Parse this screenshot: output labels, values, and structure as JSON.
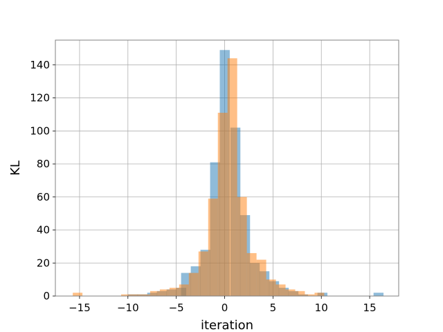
{
  "chart_data": {
    "type": "histogram",
    "title": "",
    "xlabel": "iteration",
    "ylabel": "KL",
    "xlim": [
      -17.5,
      18.0
    ],
    "ylim": [
      0,
      155
    ],
    "xticks": [
      -15,
      -10,
      -5,
      0,
      5,
      10,
      15
    ],
    "yticks": [
      0,
      20,
      40,
      60,
      80,
      100,
      120,
      140
    ],
    "grid": true,
    "legend": "none",
    "series": [
      {
        "color": "#1f77b4",
        "opacity": 0.5,
        "bin_width": 1.03,
        "bin_starts": [
          -10.0,
          -9.0,
          -8.0,
          -7.0,
          -6.0,
          -5.0,
          -4.5,
          -3.5,
          -2.5,
          -1.5,
          -0.5,
          0.6,
          1.6,
          2.6,
          3.6,
          4.6,
          5.6,
          6.6,
          7.6,
          9.6,
          15.4
        ],
        "counts": [
          1,
          1,
          2,
          3,
          4,
          5,
          14,
          18,
          28,
          81,
          149,
          102,
          49,
          20,
          15,
          9,
          5,
          3,
          1,
          2,
          2
        ]
      },
      {
        "color": "#ff7f0e",
        "opacity": 0.5,
        "bin_width": 1.0,
        "bin_starts": [
          -15.7,
          -10.7,
          -9.7,
          -8.7,
          -7.7,
          -6.7,
          -5.7,
          -4.7,
          -3.7,
          -2.7,
          -1.7,
          -0.7,
          0.3,
          1.3,
          2.3,
          3.3,
          4.3,
          5.3,
          6.3,
          7.3,
          8.3,
          9.3
        ],
        "counts": [
          2,
          1,
          1,
          1,
          3,
          4,
          5,
          7,
          14,
          27,
          59,
          111,
          144,
          60,
          26,
          22,
          10,
          7,
          4,
          3,
          1,
          2
        ]
      }
    ]
  }
}
